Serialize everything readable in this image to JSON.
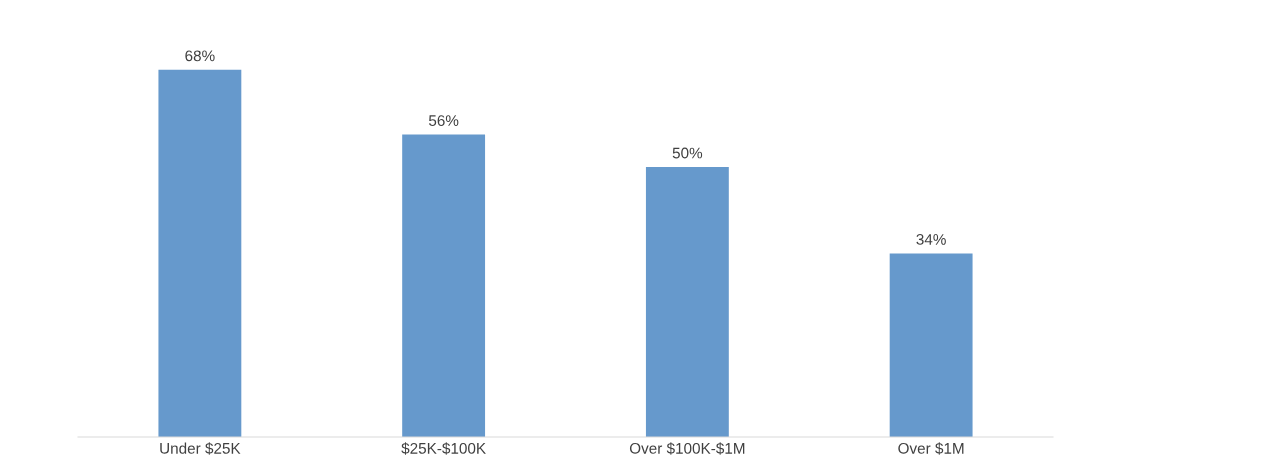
{
  "chart_data": {
    "type": "bar",
    "categories": [
      "Under $25K",
      "$25K-$100K",
      "Over $100K-$1M",
      "Over $1M"
    ],
    "values": [
      68,
      56,
      50,
      34
    ],
    "value_labels": [
      "68%",
      "56%",
      "50%",
      "34%"
    ],
    "color": "#6699cc",
    "grid": false,
    "legend": false
  }
}
